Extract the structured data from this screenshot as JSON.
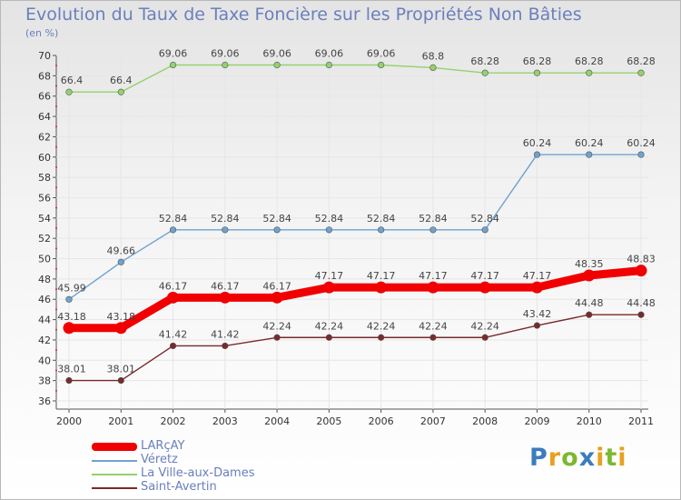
{
  "title": "Evolution du Taux de Taxe Foncière sur les Propriétés Non Bâties",
  "unit": "(en %)",
  "logo": {
    "text": "Proxiti",
    "letters": [
      {
        "ch": "P",
        "color": "#3a7cc0"
      },
      {
        "ch": "r",
        "color": "#e8a020"
      },
      {
        "ch": "o",
        "color": "#7cb830"
      },
      {
        "ch": "x",
        "color": "#3a7cc0"
      },
      {
        "ch": "i",
        "color": "#e8a020"
      },
      {
        "ch": "t",
        "color": "#7cb830"
      },
      {
        "ch": "i",
        "color": "#e8a020"
      }
    ]
  },
  "chart_data": {
    "type": "line",
    "title": "Evolution du Taux de Taxe Foncière sur les Propriétés Non Bâties",
    "ylabel": "(en %)",
    "xlabel": "",
    "x": [
      "2000",
      "2001",
      "2002",
      "2003",
      "2004",
      "2005",
      "2006",
      "2007",
      "2008",
      "2009",
      "2010",
      "2011"
    ],
    "ylim": [
      36,
      70
    ],
    "yticks": [
      36,
      38,
      40,
      42,
      44,
      46,
      48,
      50,
      52,
      54,
      56,
      58,
      60,
      62,
      64,
      66,
      68,
      70
    ],
    "grid": true,
    "legend": "bottom-left",
    "series": [
      {
        "name": "La Ville-aux-Dames",
        "color": "#94d26c",
        "values": [
          66.4,
          66.4,
          69.06,
          69.06,
          69.06,
          69.06,
          69.06,
          68.8,
          68.28,
          68.28,
          68.28,
          68.28
        ],
        "labels": [
          "66.4",
          "66.4",
          "69.06",
          "69.06",
          "69.06",
          "69.06",
          "69.06",
          "68.8",
          "68.28",
          "68.28",
          "68.28",
          "68.28"
        ]
      },
      {
        "name": "Véretz",
        "color": "#6fa2d0",
        "values": [
          45.99,
          49.66,
          52.84,
          52.84,
          52.84,
          52.84,
          52.84,
          52.84,
          52.84,
          60.24,
          60.24,
          60.24
        ],
        "labels": [
          "45.99",
          "49.66",
          "52.84",
          "52.84",
          "52.84",
          "52.84",
          "52.84",
          "52.84",
          "52.84",
          "60.24",
          "60.24",
          "60.24"
        ]
      },
      {
        "name": "LARçAY",
        "color": "#f00000",
        "values": [
          43.18,
          43.18,
          46.17,
          46.17,
          46.17,
          47.17,
          47.17,
          47.17,
          47.17,
          47.17,
          48.35,
          48.83
        ],
        "labels": [
          "43.18",
          "43.18",
          "46.17",
          "46.17",
          "46.17",
          "47.17",
          "47.17",
          "47.17",
          "47.17",
          "47.17",
          "48.35",
          "48.83"
        ]
      },
      {
        "name": "Saint-Avertin",
        "color": "#7a2a2a",
        "values": [
          38.01,
          38.01,
          41.42,
          41.42,
          42.24,
          42.24,
          42.24,
          42.24,
          42.24,
          43.42,
          44.48,
          44.48
        ],
        "labels": [
          "38.01",
          "38.01",
          "41.42",
          "41.42",
          "42.24",
          "42.24",
          "42.24",
          "42.24",
          "42.24",
          "43.42",
          "44.48",
          "44.48"
        ]
      }
    ],
    "legend_entries": [
      "LARçAY",
      "Véretz",
      "La Ville-aux-Dames",
      "Saint-Avertin"
    ]
  }
}
